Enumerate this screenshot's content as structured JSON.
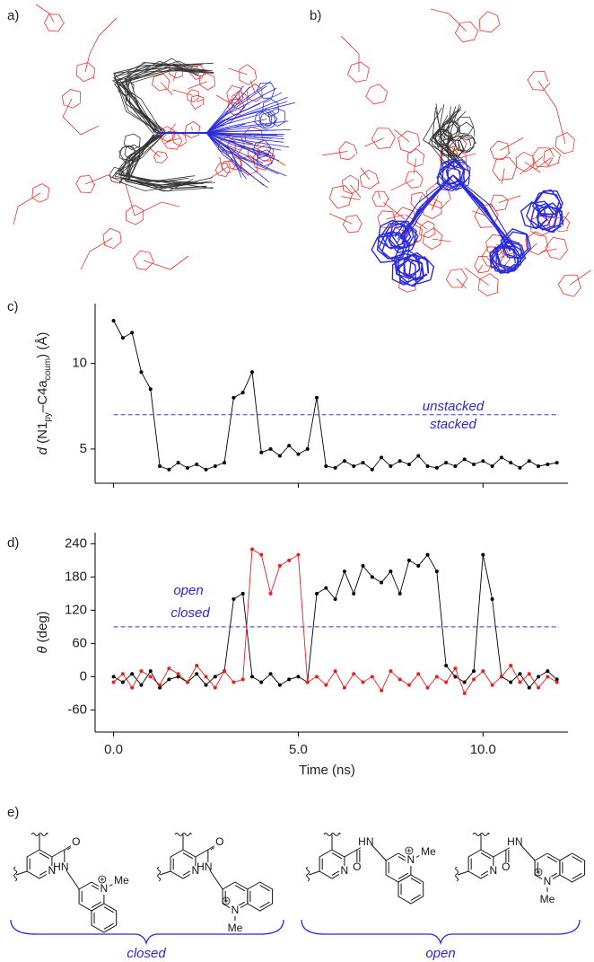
{
  "panel_labels": [
    "a)",
    "b)",
    "c)",
    "d)",
    "e)"
  ],
  "chart_data": [
    {
      "type": "line",
      "ylabel": [
        "d",
        " (N1",
        "py",
        "–C4a",
        "coum",
        ") (Å)"
      ],
      "x": [
        0,
        0.25,
        0.5,
        0.75,
        1,
        1.25,
        1.5,
        1.75,
        2,
        2.25,
        2.5,
        2.75,
        3,
        3.25,
        3.5,
        3.75,
        4,
        4.25,
        4.5,
        4.75,
        5,
        5.25,
        5.5,
        5.75,
        6,
        6.25,
        6.5,
        6.75,
        7,
        7.25,
        7.5,
        7.75,
        8,
        8.25,
        8.5,
        8.75,
        9,
        9.25,
        9.5,
        9.75,
        10,
        10.25,
        10.5,
        10.75,
        11,
        11.25,
        11.5,
        11.75,
        12
      ],
      "series": [
        {
          "color": "#000000",
          "values": [
            12.5,
            11.5,
            11.8,
            9.5,
            8.5,
            4.0,
            3.8,
            4.2,
            3.9,
            4.1,
            3.8,
            4.0,
            4.2,
            8.0,
            8.3,
            9.5,
            4.8,
            5.0,
            4.6,
            5.2,
            4.7,
            5.0,
            8.0,
            4.0,
            3.9,
            4.3,
            4.0,
            4.2,
            3.8,
            4.5,
            4.0,
            4.3,
            4.1,
            4.6,
            4.0,
            3.9,
            4.2,
            4.0,
            4.4,
            4.1,
            4.3,
            4.0,
            4.5,
            4.2,
            3.9,
            4.3,
            4.0,
            4.1,
            4.2
          ]
        }
      ],
      "xlim": [
        -0.5,
        12.3
      ],
      "ylim": [
        3,
        13.5
      ],
      "yticks": [
        5,
        10
      ],
      "threshold": 7,
      "annotations": [
        "unstacked",
        "stacked"
      ]
    },
    {
      "type": "line",
      "ylabel": [
        "θ",
        " (deg)"
      ],
      "xlabel": "Time (ns)",
      "x": [
        0,
        0.25,
        0.5,
        0.75,
        1,
        1.25,
        1.5,
        1.75,
        2,
        2.25,
        2.5,
        2.75,
        3,
        3.25,
        3.5,
        3.75,
        4,
        4.25,
        4.5,
        4.75,
        5,
        5.25,
        5.5,
        5.75,
        6,
        6.25,
        6.5,
        6.75,
        7,
        7.25,
        7.5,
        7.75,
        8,
        8.25,
        8.5,
        8.75,
        9,
        9.25,
        9.5,
        9.75,
        10,
        10.25,
        10.5,
        10.75,
        11,
        11.25,
        11.5,
        11.75,
        12
      ],
      "series": [
        {
          "color": "#000000",
          "values": [
            0,
            -10,
            5,
            -15,
            10,
            -20,
            -5,
            0,
            -10,
            5,
            -15,
            0,
            10,
            140,
            150,
            0,
            -10,
            5,
            -15,
            -5,
            0,
            -10,
            150,
            160,
            140,
            190,
            150,
            200,
            180,
            170,
            190,
            150,
            210,
            200,
            220,
            190,
            20,
            0,
            -10,
            10,
            220,
            140,
            0,
            -10,
            5,
            -20,
            0,
            10,
            -5
          ]
        },
        {
          "color": "#e8201a",
          "values": [
            -10,
            5,
            -20,
            10,
            0,
            -15,
            15,
            5,
            -10,
            20,
            0,
            -20,
            10,
            -10,
            -5,
            230,
            220,
            150,
            200,
            210,
            220,
            -10,
            0,
            -15,
            10,
            -20,
            5,
            -10,
            0,
            -25,
            10,
            -5,
            -15,
            5,
            -20,
            0,
            -10,
            15,
            -30,
            -5,
            10,
            -15,
            0,
            20,
            -10,
            5,
            -20,
            0,
            -10
          ]
        }
      ],
      "xlim": [
        -0.5,
        12.3
      ],
      "ylim": [
        -100,
        260
      ],
      "yticks": [
        -60,
        0,
        60,
        120,
        180,
        240
      ],
      "xticks": [
        {
          "value": 0,
          "label": "0.0"
        },
        {
          "value": 5,
          "label": "5.0"
        },
        {
          "value": 10,
          "label": "10.0"
        }
      ],
      "threshold": 90,
      "annotations": [
        "open",
        "closed"
      ]
    }
  ],
  "scheme": {
    "structures": [
      {
        "atoms": [
          "N",
          "O",
          "HN",
          "N",
          "Me"
        ]
      },
      {
        "atoms": [
          "N",
          "O",
          "HN",
          "N",
          "Me"
        ]
      },
      {
        "atoms": [
          "N",
          "O",
          "HN",
          "N",
          "Me"
        ]
      },
      {
        "atoms": [
          "N",
          "O",
          "HN",
          "N",
          "Me"
        ]
      }
    ],
    "groups": [
      "closed",
      "open"
    ]
  }
}
